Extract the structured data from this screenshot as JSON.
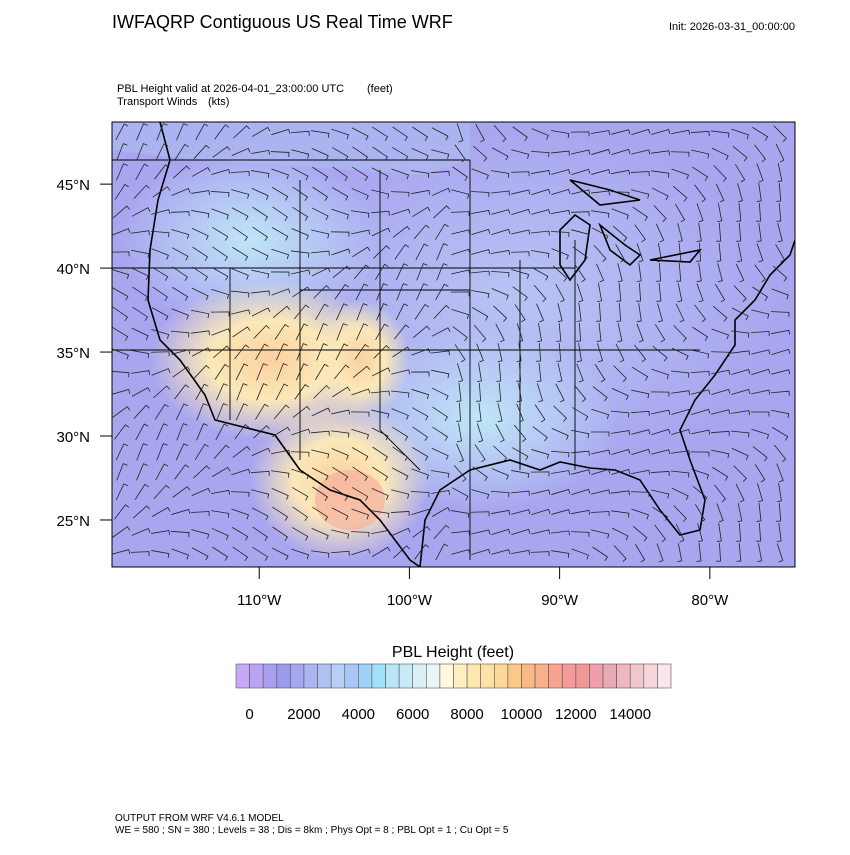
{
  "header": {
    "title": "IWFAQRP Contiguous US Real Time WRF",
    "init": "Init: 2026-03-31_00:00:00"
  },
  "plot": {
    "field_label": "PBL Height valid at 2026-04-01_23:00:00 UTC",
    "field_units": "(feet)",
    "wind_label": "Transport Winds",
    "wind_units": "(kts)"
  },
  "map": {
    "xlim": [
      -119.8,
      -74.33
    ],
    "ylim": [
      22.2,
      48.7
    ],
    "lat_ticks": [
      {
        "value": 45,
        "label": "45°N"
      },
      {
        "value": 40,
        "label": "40°N"
      },
      {
        "value": 35,
        "label": "35°N"
      },
      {
        "value": 30,
        "label": "30°N"
      },
      {
        "value": 25,
        "label": "25°N"
      }
    ],
    "lon_ticks": [
      {
        "value": -110,
        "label": "110°W"
      },
      {
        "value": -100,
        "label": "100°W"
      },
      {
        "value": -90,
        "label": "90°W"
      },
      {
        "value": -80,
        "label": "80°W"
      }
    ]
  },
  "colorbar": {
    "title": "PBL Height  (feet)",
    "lim": [
      -500,
      15500
    ],
    "ticks": [
      0,
      2000,
      4000,
      6000,
      8000,
      10000,
      12000,
      14000
    ],
    "colors": [
      "#c8a8f5",
      "#b9a3f2",
      "#a99ff0",
      "#9b9bee",
      "#a4a8f0",
      "#aab5f2",
      "#b0c2f4",
      "#b6cff6",
      "#a7c8f6",
      "#a0d2f7",
      "#a0e0f8",
      "#b6e6f8",
      "#c8ebf7",
      "#d9f0f7",
      "#e9f5f8",
      "#fff8dc",
      "#fef0c0",
      "#fde9b0",
      "#fde2a5",
      "#fbd79a",
      "#fbc88a",
      "#f9bb85",
      "#f8b089",
      "#f7a390",
      "#f59a98",
      "#f29898",
      "#ee9faa",
      "#eaaab4",
      "#f0b7c0",
      "#f3c6cd",
      "#f6d6da",
      "#fae6e8"
    ]
  },
  "footer": {
    "line1": "OUTPUT FROM WRF V4.6.1 MODEL",
    "line2": "WE = 580 ; SN = 380 ; Levels = 38 ; Dis = 8km ; Phys Opt = 8 ; PBL Opt = 1 ; Cu Opt = 5"
  }
}
